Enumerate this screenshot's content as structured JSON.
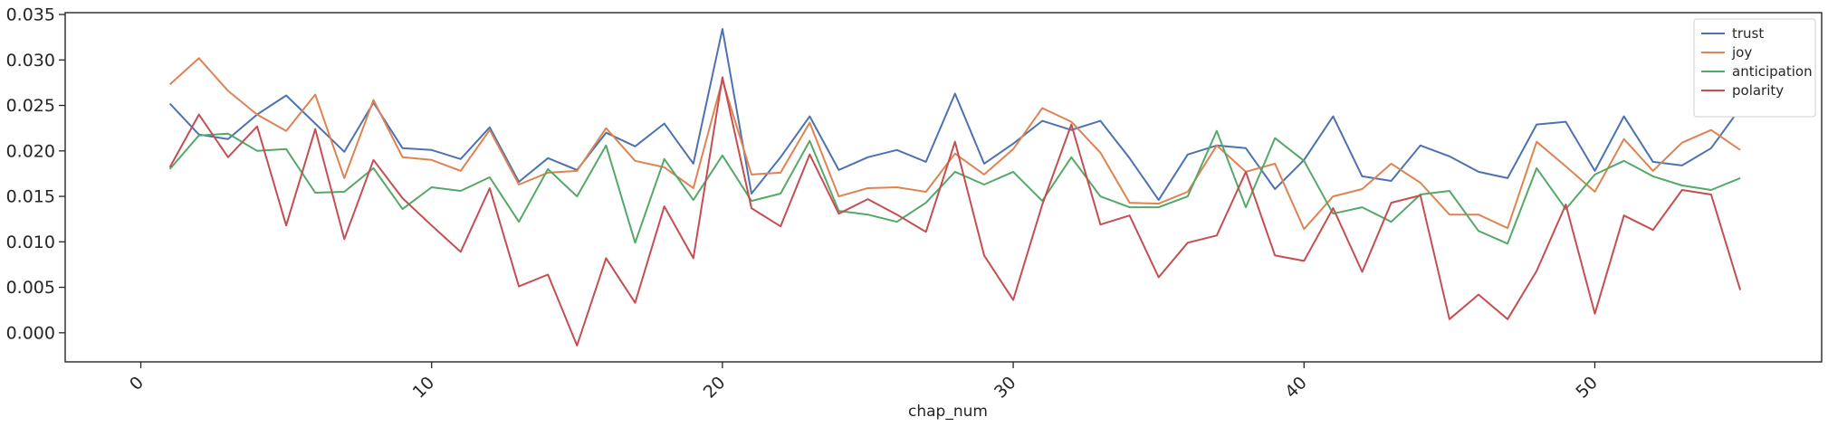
{
  "chart_data": {
    "type": "line",
    "xlabel": "chap_num",
    "ylabel": "",
    "xlim": [
      -2.6,
      57.8
    ],
    "ylim": [
      -0.0032,
      0.0352
    ],
    "xticks": [
      0,
      10,
      20,
      30,
      40,
      50
    ],
    "xtick_labels": [
      "0",
      "10",
      "20",
      "30",
      "40",
      "50"
    ],
    "yticks": [
      0.0,
      0.005,
      0.01,
      0.015,
      0.02,
      0.025,
      0.03,
      0.035
    ],
    "ytick_labels": [
      "0.000",
      "0.005",
      "0.010",
      "0.015",
      "0.020",
      "0.025",
      "0.030",
      "0.035"
    ],
    "grid": false,
    "legend_position": "top-right",
    "x": [
      1,
      2,
      3,
      4,
      5,
      6,
      7,
      8,
      9,
      10,
      11,
      12,
      13,
      14,
      15,
      16,
      17,
      18,
      19,
      20,
      21,
      22,
      23,
      24,
      25,
      26,
      27,
      28,
      29,
      30,
      31,
      32,
      33,
      34,
      35,
      36,
      37,
      38,
      39,
      40,
      41,
      42,
      43,
      44,
      45,
      46,
      47,
      48,
      49,
      50,
      51,
      52,
      53,
      54,
      55
    ],
    "series": [
      {
        "name": "trust",
        "color": "#4c72b0",
        "values": [
          0.0252,
          0.0218,
          0.0213,
          0.024,
          0.0261,
          0.023,
          0.0199,
          0.0253,
          0.0203,
          0.0201,
          0.0191,
          0.0226,
          0.0166,
          0.0192,
          0.0179,
          0.022,
          0.0205,
          0.023,
          0.0186,
          0.0334,
          0.0153,
          0.0193,
          0.0238,
          0.0179,
          0.0193,
          0.0201,
          0.0188,
          0.0263,
          0.0186,
          0.0208,
          0.0233,
          0.0223,
          0.0233,
          0.0192,
          0.0146,
          0.0196,
          0.0206,
          0.0203,
          0.0158,
          0.019,
          0.0238,
          0.0172,
          0.0167,
          0.0206,
          0.0194,
          0.0177,
          0.017,
          0.0229,
          0.0232,
          0.0178,
          0.0238,
          0.0188,
          0.0184,
          0.0203,
          0.0247
        ]
      },
      {
        "name": "joy",
        "color": "#dd8452",
        "values": [
          0.0273,
          0.0302,
          0.0266,
          0.024,
          0.0222,
          0.0262,
          0.017,
          0.0256,
          0.0193,
          0.019,
          0.0178,
          0.0223,
          0.0163,
          0.0176,
          0.0178,
          0.0225,
          0.0189,
          0.0182,
          0.0159,
          0.0278,
          0.0174,
          0.0176,
          0.0231,
          0.015,
          0.0159,
          0.016,
          0.0155,
          0.0197,
          0.0174,
          0.0202,
          0.0247,
          0.0232,
          0.0198,
          0.0143,
          0.0142,
          0.0155,
          0.0206,
          0.0177,
          0.0186,
          0.0114,
          0.015,
          0.0158,
          0.0186,
          0.0165,
          0.013,
          0.013,
          0.0115,
          0.021,
          0.0183,
          0.0155,
          0.0213,
          0.0178,
          0.0209,
          0.0223,
          0.0201
        ]
      },
      {
        "name": "anticipation",
        "color": "#55a868",
        "values": [
          0.018,
          0.0217,
          0.0219,
          0.02,
          0.0202,
          0.0154,
          0.0155,
          0.0181,
          0.0136,
          0.016,
          0.0156,
          0.0171,
          0.0122,
          0.018,
          0.015,
          0.0206,
          0.0099,
          0.0191,
          0.0146,
          0.0195,
          0.0145,
          0.0153,
          0.0211,
          0.0134,
          0.013,
          0.0122,
          0.0143,
          0.0177,
          0.0163,
          0.0177,
          0.0145,
          0.0193,
          0.015,
          0.0138,
          0.0138,
          0.015,
          0.0222,
          0.0138,
          0.0214,
          0.0189,
          0.0131,
          0.0138,
          0.0122,
          0.0152,
          0.0156,
          0.0112,
          0.0098,
          0.0181,
          0.0136,
          0.0174,
          0.0189,
          0.0172,
          0.0162,
          0.0157,
          0.017
        ]
      },
      {
        "name": "polarity",
        "color": "#c44e52",
        "values": [
          0.0182,
          0.024,
          0.0193,
          0.0227,
          0.0118,
          0.0224,
          0.0103,
          0.019,
          0.0148,
          0.0118,
          0.0089,
          0.0159,
          0.0051,
          0.0064,
          -0.0014,
          0.0082,
          0.0033,
          0.0139,
          0.0082,
          0.0281,
          0.0137,
          0.0117,
          0.0196,
          0.0131,
          0.0147,
          0.013,
          0.0111,
          0.021,
          0.0085,
          0.0036,
          0.0141,
          0.0229,
          0.0119,
          0.0129,
          0.0061,
          0.0099,
          0.0107,
          0.0177,
          0.0085,
          0.0079,
          0.0137,
          0.0067,
          0.0143,
          0.0151,
          0.0015,
          0.0042,
          0.0015,
          0.0068,
          0.0141,
          0.0021,
          0.0129,
          0.0113,
          0.0157,
          0.0152,
          0.0047
        ]
      }
    ]
  }
}
